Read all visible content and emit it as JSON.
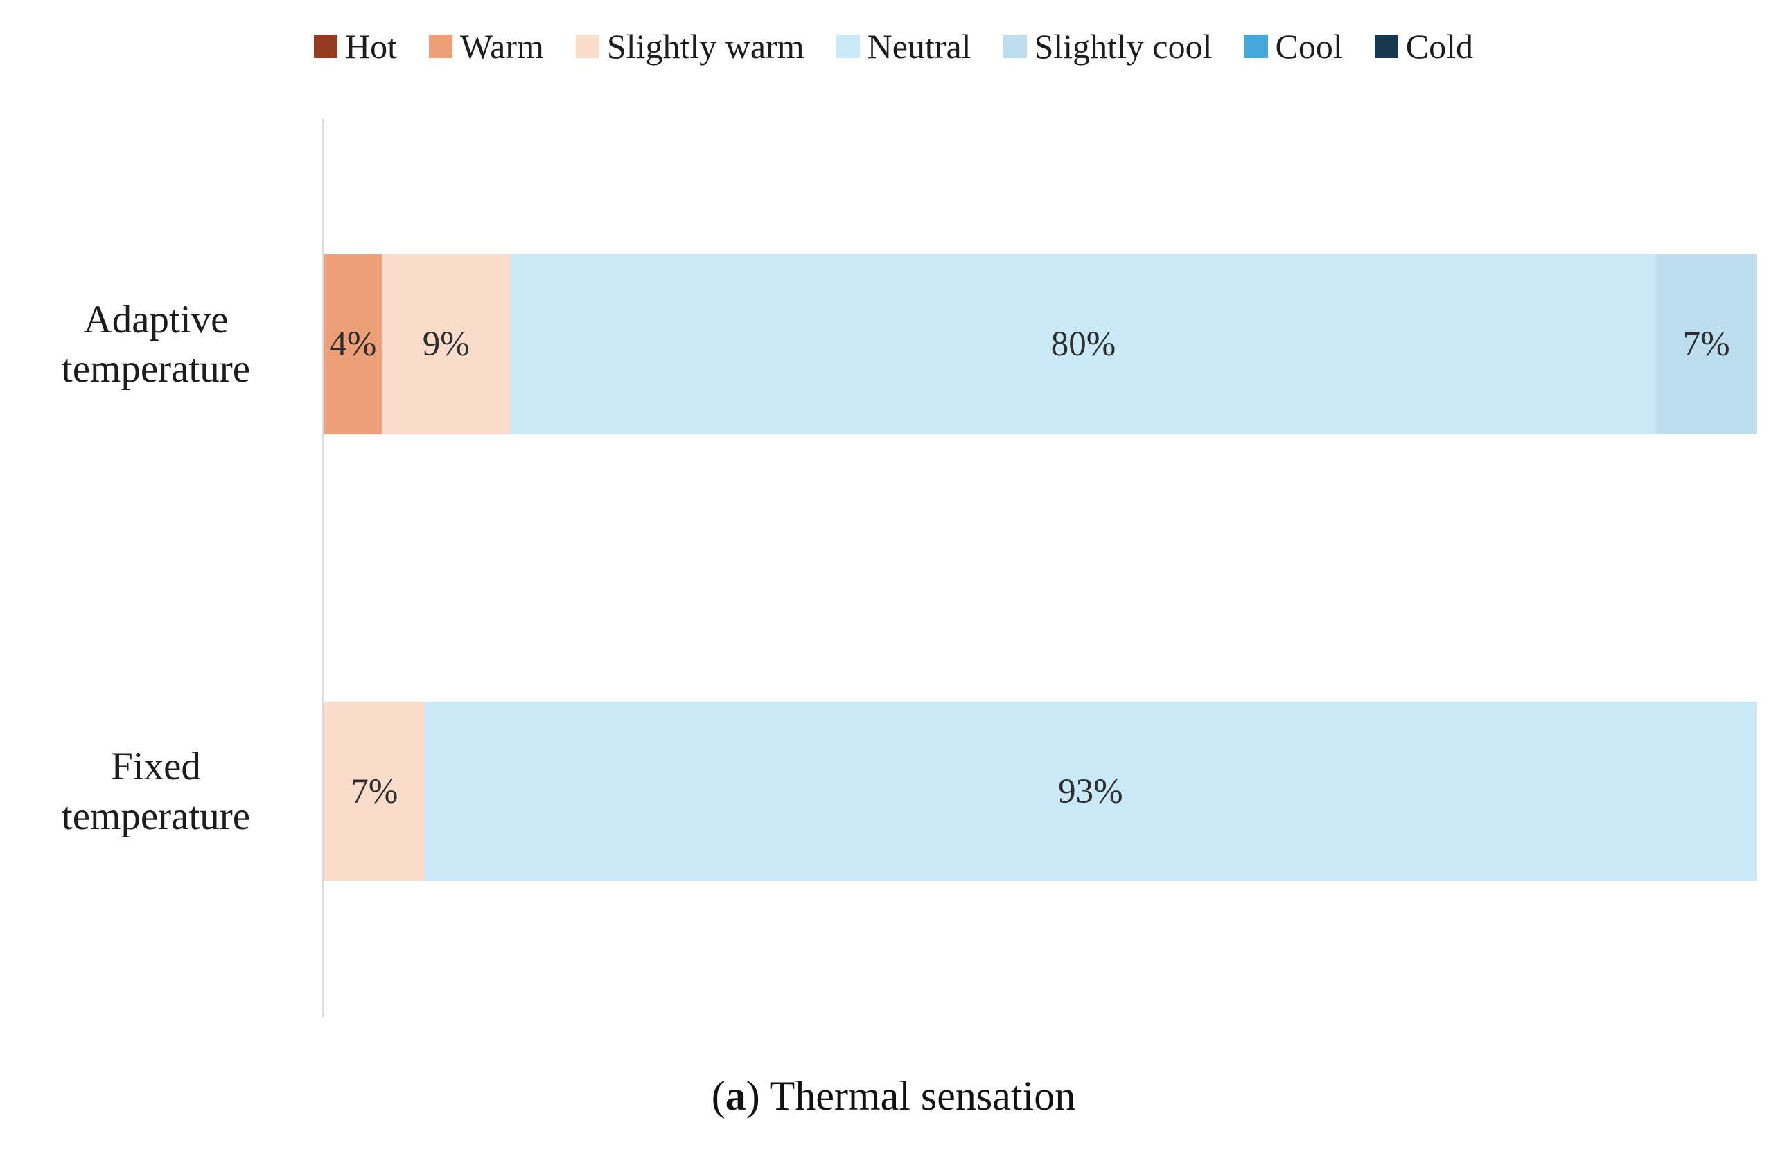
{
  "caption": {
    "pre": "(",
    "bold": "a",
    "post": ") Thermal sensation"
  },
  "colors": {
    "axis_line": "#dcdcdc",
    "category_text": "#1c1c1c",
    "value_text": "#2e2e2e"
  },
  "chart_data": {
    "type": "bar",
    "orientation": "horizontal",
    "stacked": true,
    "value_unit": "%",
    "xlim": [
      0,
      100
    ],
    "grid": false,
    "legend_position": "top",
    "title": "(a) Thermal sensation",
    "legend": [
      {
        "label": "Hot",
        "color": "#963b20"
      },
      {
        "label": "Warm",
        "color": "#eda077"
      },
      {
        "label": "Slightly warm",
        "color": "#fadccb"
      },
      {
        "label": "Neutral",
        "color": "#c9e9f8"
      },
      {
        "label": "Slightly cool",
        "color": "#bcdeee"
      },
      {
        "label": "Cool",
        "color": "#45a8db"
      },
      {
        "label": "Cold",
        "color": "#16374d"
      }
    ],
    "categories": [
      "Adaptive temperature",
      "Fixed temperature"
    ],
    "series": [
      {
        "name": "Hot",
        "values": [
          0,
          0
        ]
      },
      {
        "name": "Warm",
        "values": [
          4,
          0
        ]
      },
      {
        "name": "Slightly warm",
        "values": [
          9,
          7
        ]
      },
      {
        "name": "Neutral",
        "values": [
          80,
          93
        ]
      },
      {
        "name": "Slightly cool",
        "values": [
          7,
          0
        ]
      },
      {
        "name": "Cool",
        "values": [
          0,
          0
        ]
      },
      {
        "name": "Cold",
        "values": [
          0,
          0
        ]
      }
    ],
    "bars": [
      {
        "category": "Adaptive temperature",
        "segments": [
          {
            "series": "Warm",
            "value": 4,
            "label": "4%"
          },
          {
            "series": "Slightly warm",
            "value": 9,
            "label": "9%"
          },
          {
            "series": "Neutral",
            "value": 80,
            "label": "80%"
          },
          {
            "series": "Slightly cool",
            "value": 7,
            "label": "7%"
          }
        ]
      },
      {
        "category": "Fixed temperature",
        "segments": [
          {
            "series": "Slightly warm",
            "value": 7,
            "label": "7%"
          },
          {
            "series": "Neutral",
            "value": 93,
            "label": "93%"
          }
        ]
      }
    ]
  }
}
